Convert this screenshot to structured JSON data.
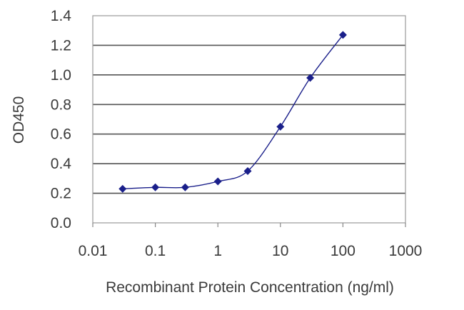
{
  "chart_data": {
    "type": "line",
    "xlabel": "Recombinant Protein Concentration (ng/ml)",
    "ylabel": "OD450",
    "x_scale": "log",
    "xlim": [
      0.01,
      1000
    ],
    "ylim": [
      0,
      1.4
    ],
    "x_ticks": [
      "0.01",
      "0.1",
      "1",
      "10",
      "100",
      "1000"
    ],
    "y_ticks": [
      "0.0",
      "0.2",
      "0.4",
      "0.6",
      "0.8",
      "1.0",
      "1.2",
      "1.4"
    ],
    "grid": "horizontal",
    "series": [
      {
        "x": [
          0.03,
          0.1,
          0.3,
          1,
          3,
          10,
          30,
          100
        ],
        "y": [
          0.23,
          0.24,
          0.24,
          0.28,
          0.35,
          0.65,
          0.98,
          1.27
        ]
      }
    ],
    "colors": {
      "series": "#1a1f8a",
      "grid": "#555555",
      "axis": "#888888"
    }
  }
}
